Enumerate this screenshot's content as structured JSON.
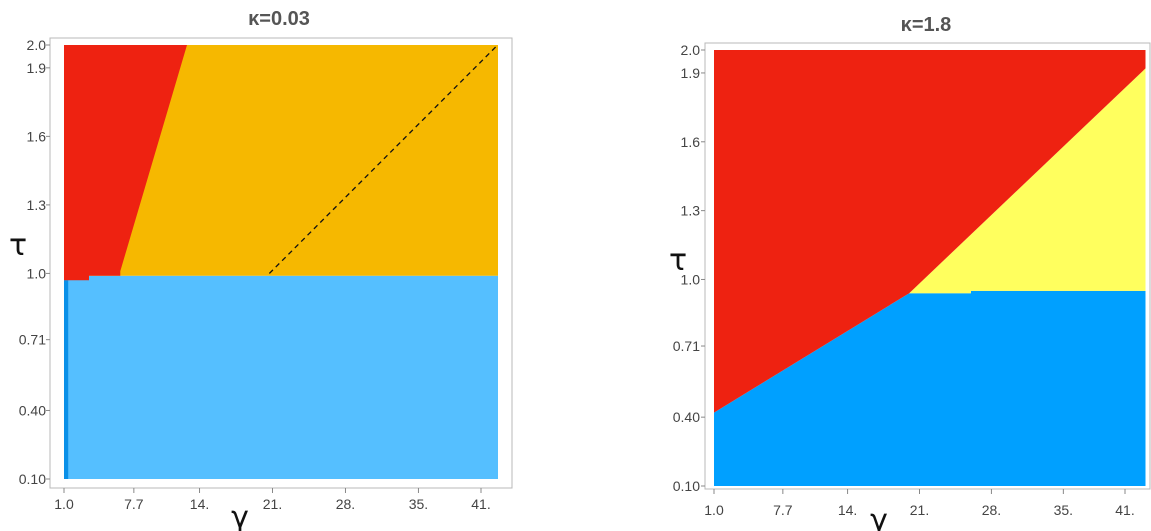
{
  "chart_data": [
    {
      "type": "heatmap",
      "title": "κ=0.03",
      "xlabel": "γ",
      "ylabel": "τ",
      "xlim": [
        0.0,
        43.0
      ],
      "ylim": [
        0.1,
        2.0
      ],
      "x_ticks": [
        "1.0",
        "7.7",
        "14.",
        "21.",
        "28.",
        "35.",
        "41."
      ],
      "x_tick_values": [
        1.0,
        7.7,
        14.0,
        21.0,
        28.0,
        35.0,
        41.0
      ],
      "y_ticks": [
        "0.10",
        "0.40",
        "0.71",
        "1.0",
        "1.3",
        "1.6",
        "1.9",
        "2.0"
      ],
      "y_tick_values": [
        0.1,
        0.4,
        0.71,
        1.0,
        1.3,
        1.6,
        1.9,
        2.0
      ],
      "colors": {
        "red": "#ee2211",
        "orange": "#f6b800",
        "blue": "#55bfff",
        "deep_blue": "#0a90e8"
      },
      "regions": [
        {
          "color": "blue",
          "polygon": [
            [
              1.0,
              0.1
            ],
            [
              43.0,
              0.1
            ],
            [
              43.0,
              0.99
            ],
            [
              1.0,
              0.99
            ]
          ]
        },
        {
          "color": "deep_blue",
          "polygon": [
            [
              1.0,
              0.1
            ],
            [
              1.4,
              0.1
            ],
            [
              1.4,
              0.97
            ],
            [
              1.0,
              0.97
            ]
          ]
        },
        {
          "color": "orange",
          "polygon": [
            [
              1.0,
              0.99
            ],
            [
              43.0,
              0.99
            ],
            [
              43.0,
              2.0
            ],
            [
              1.0,
              2.0
            ]
          ]
        },
        {
          "color": "red",
          "polygon": [
            [
              1.0,
              0.97
            ],
            [
              3.4,
              0.97
            ],
            [
              3.4,
              0.99
            ],
            [
              6.4,
              0.99
            ],
            [
              6.4,
              1.01
            ],
            [
              12.8,
              2.0
            ],
            [
              1.0,
              2.0
            ]
          ]
        }
      ],
      "dashed_line": [
        [
          20.7,
          1.0
        ],
        [
          42.6,
          2.0
        ]
      ]
    },
    {
      "type": "heatmap",
      "title": "κ=1.8",
      "xlabel": "γ",
      "ylabel": "τ",
      "xlim": [
        0.0,
        43.0
      ],
      "ylim": [
        0.1,
        2.0
      ],
      "x_ticks": [
        "1.0",
        "7.7",
        "14.",
        "21.",
        "28.",
        "35.",
        "41."
      ],
      "x_tick_values": [
        1.0,
        7.7,
        14.0,
        21.0,
        28.0,
        35.0,
        41.0
      ],
      "y_ticks": [
        "0.10",
        "0.40",
        "0.71",
        "1.0",
        "1.3",
        "1.6",
        "1.9",
        "2.0"
      ],
      "y_tick_values": [
        0.1,
        0.4,
        0.71,
        1.0,
        1.3,
        1.6,
        1.9,
        2.0
      ],
      "colors": {
        "red": "#ee2211",
        "yellow": "#ffff5e",
        "blue": "#00a0ff"
      },
      "regions": [
        {
          "color": "blue",
          "polygon": [
            [
              1.0,
              0.1
            ],
            [
              43.0,
              0.1
            ],
            [
              43.0,
              0.95
            ],
            [
              26.0,
              0.95
            ],
            [
              26.0,
              0.94
            ],
            [
              20.0,
              0.94
            ],
            [
              1.0,
              0.42
            ]
          ]
        },
        {
          "color": "yellow",
          "polygon": [
            [
              20.0,
              0.94
            ],
            [
              26.0,
              0.94
            ],
            [
              26.0,
              0.95
            ],
            [
              43.0,
              0.95
            ],
            [
              43.0,
              1.92
            ]
          ]
        },
        {
          "color": "red",
          "polygon": [
            [
              1.0,
              0.42
            ],
            [
              20.0,
              0.94
            ],
            [
              43.0,
              1.92
            ],
            [
              43.0,
              2.0
            ],
            [
              1.0,
              2.0
            ]
          ]
        }
      ]
    }
  ]
}
